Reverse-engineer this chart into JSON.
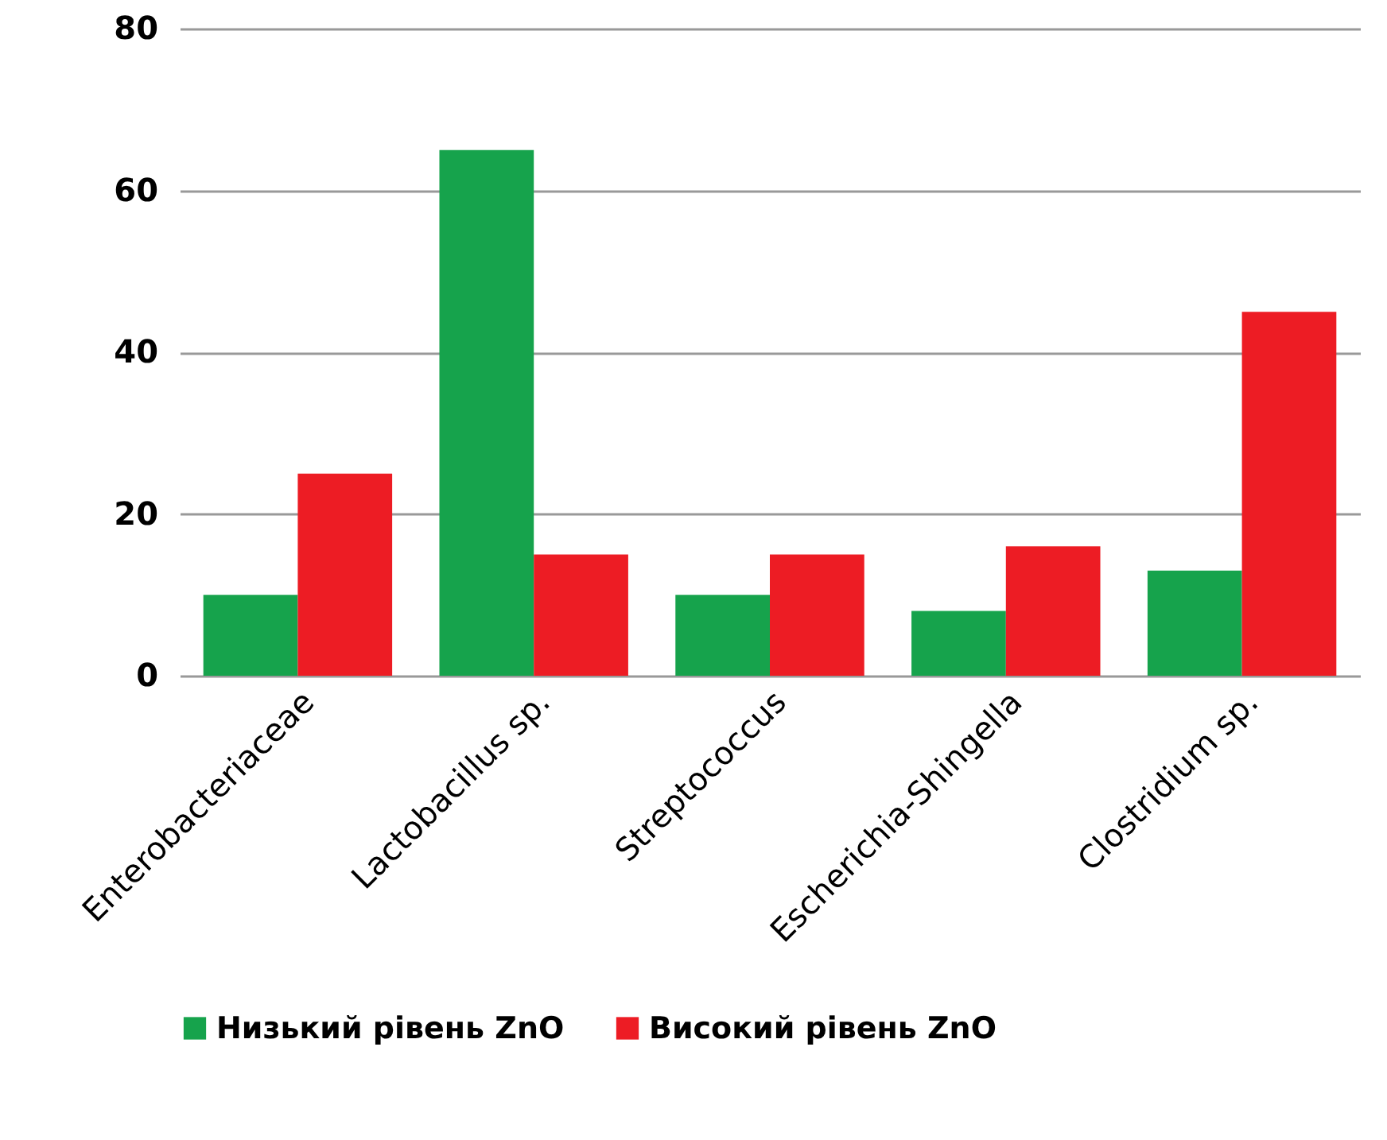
{
  "chart_data": {
    "type": "bar",
    "categories": [
      "Enterobacteriaceae",
      "Lactobacillus sp.",
      "Streptococcus",
      "Escherichia-Shingella",
      "Clostridium sp."
    ],
    "series": [
      {
        "name": "Низький рівень ZnO",
        "color": "#16a34c",
        "values": [
          10,
          65,
          10,
          8,
          13
        ]
      },
      {
        "name": "Високий рівень ZnO",
        "color": "#ed1c24",
        "values": [
          25,
          15,
          15,
          16,
          45
        ]
      }
    ],
    "ylim": [
      0,
      80
    ],
    "yticks": [
      0,
      20,
      40,
      60,
      80
    ],
    "grid": "y",
    "legend": "bottom"
  }
}
